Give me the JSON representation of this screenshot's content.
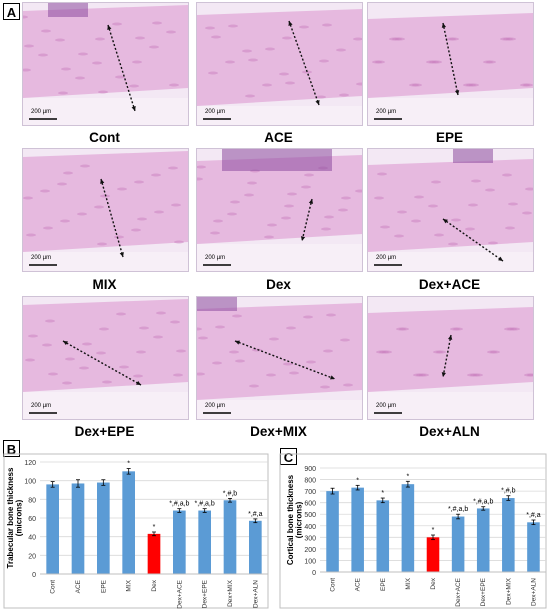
{
  "panel_a": {
    "letter": "A",
    "scale_bar_text": "200 µm",
    "images": [
      {
        "caption": "Cont"
      },
      {
        "caption": "ACE"
      },
      {
        "caption": "EPE"
      },
      {
        "caption": "MIX"
      },
      {
        "caption": "Dex"
      },
      {
        "caption": "Dex+ACE"
      },
      {
        "caption": "Dex+EPE"
      },
      {
        "caption": "Dex+MIX"
      },
      {
        "caption": "Dex+ALN"
      }
    ]
  },
  "chart_data": [
    {
      "panel": "B",
      "type": "bar",
      "title": "",
      "xlabel": "",
      "ylabel": "Trabecular bone thickness (microns)",
      "ylim": [
        0,
        120
      ],
      "yticks": [
        0,
        20,
        40,
        60,
        80,
        100,
        120
      ],
      "grid": true,
      "categories": [
        "Cont",
        "ACE",
        "EPE",
        "MIX",
        "Dex",
        "Dex+ACE",
        "Dex+EPE",
        "Dex+MIX",
        "Dex+ALN"
      ],
      "values": [
        96,
        97,
        98,
        110,
        43,
        68,
        68,
        79,
        57
      ],
      "errors": [
        3,
        4,
        3,
        3,
        2,
        2,
        2,
        2,
        2
      ],
      "annotations": [
        "",
        "",
        "",
        "*",
        "*",
        "*,#,a,b",
        "*,#,a,b",
        "*,#,b",
        "*,#,a"
      ],
      "bar_color": "#5b9bd5",
      "highlight_color": "#ff0000",
      "highlight_index": 4
    },
    {
      "panel": "C",
      "type": "bar",
      "title": "",
      "xlabel": "",
      "ylabel": "Cortical bone thickness (microns)",
      "ylim": [
        0,
        900
      ],
      "yticks": [
        0,
        100,
        200,
        300,
        400,
        500,
        600,
        700,
        800,
        900
      ],
      "grid": true,
      "categories": [
        "Cont",
        "ACE",
        "EPE",
        "MIX",
        "Dex",
        "Dex+ACE",
        "Dex+EPE",
        "Dex+MIX",
        "Dex+ALN"
      ],
      "values": [
        700,
        730,
        620,
        760,
        300,
        480,
        550,
        640,
        430
      ],
      "errors": [
        25,
        20,
        20,
        25,
        20,
        20,
        15,
        20,
        20
      ],
      "annotations": [
        "",
        "*",
        "*",
        "*",
        "*",
        "*,#,a,b",
        "*,#,a,b",
        "*,#,b",
        "*,#,a"
      ],
      "bar_color": "#5b9bd5",
      "highlight_color": "#ff0000",
      "highlight_index": 4
    }
  ]
}
